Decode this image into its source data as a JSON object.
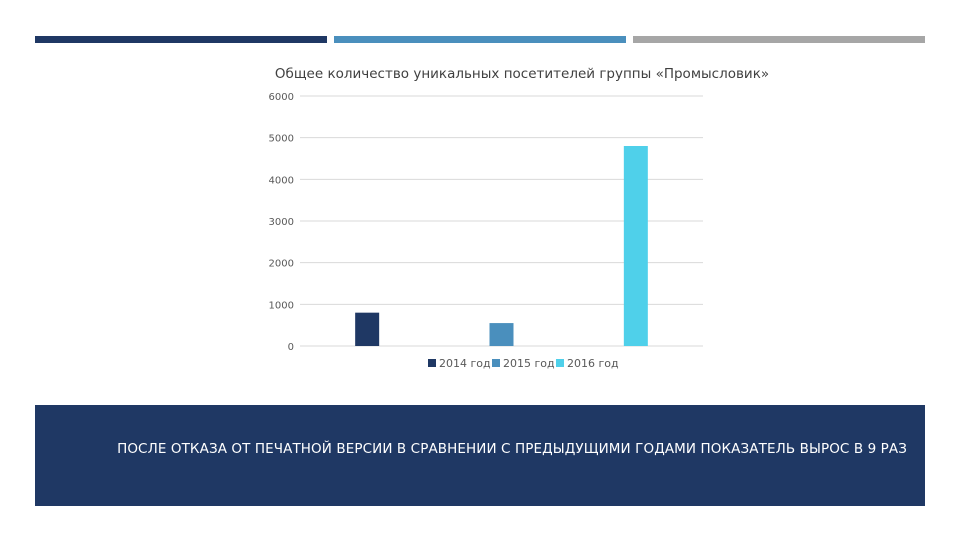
{
  "colors": {
    "stripe_1": "#1f3864",
    "stripe_2": "#4a8fbd",
    "stripe_3": "#a6a6a6",
    "banner_bg": "#1f3864",
    "grid": "#d9d9d9"
  },
  "chart_data": {
    "type": "bar",
    "title": "Общее количество уникальных посетителей группы «Промысловик»",
    "xlabel": "",
    "ylabel": "",
    "ylim": [
      0,
      6000
    ],
    "yticks": [
      "0",
      "1000",
      "2000",
      "3000",
      "4000",
      "5000",
      "6000"
    ],
    "grid": true,
    "legend_position": "bottom",
    "series": [
      {
        "name": "2014 год",
        "value": 800,
        "color": "#1f3864"
      },
      {
        "name": "2015 год",
        "value": 550,
        "color": "#4a8fbd"
      },
      {
        "name": "2016 год",
        "value": 4800,
        "color": "#4fd0ea"
      }
    ]
  },
  "banner": {
    "text": "ПОСЛЕ ОТКАЗА ОТ ПЕЧАТНОЙ ВЕРСИИ В СРАВНЕНИИ С ПРЕДЫДУЩИМИ ГОДАМИ ПОКАЗАТЕЛЬ ВЫРОС В 9 РАЗ"
  }
}
